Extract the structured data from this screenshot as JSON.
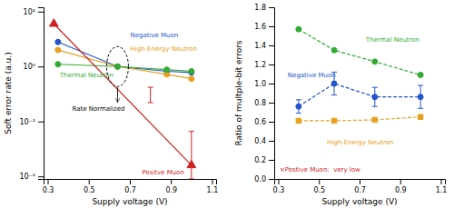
{
  "chart_data": [
    {
      "type": "line",
      "x_label": "Supply voltage (V)",
      "y_label": "Soft error rate (a.u.)",
      "log": "y",
      "grid": false,
      "xlim": [
        0.28,
        1.12
      ],
      "ylim": [
        0.009,
        12
      ],
      "xticks": [
        0.3,
        0.5,
        0.7,
        0.9,
        1.1
      ],
      "yticks": [
        {
          "value": 0.01,
          "label": "10⁻²"
        },
        {
          "value": 0.1,
          "label": "10⁻¹"
        },
        {
          "value": 1,
          "label": "10⁰"
        },
        {
          "value": 10,
          "label": "10¹"
        }
      ],
      "series": [
        {
          "name": "Negative Muon",
          "color": "#2255cc",
          "marker": "circle",
          "line_style": "solid",
          "x": [
            0.35,
            0.64,
            0.88,
            1.0
          ],
          "values": [
            2.8,
            1.0,
            0.82,
            0.78
          ]
        },
        {
          "name": "High-Energy Neutron",
          "color": "#e8a020",
          "marker": "circle",
          "line_style": "solid",
          "x": [
            0.35,
            0.64,
            0.88,
            1.0
          ],
          "values": [
            2.0,
            1.0,
            0.72,
            0.6
          ]
        },
        {
          "name": "Thermal Neutron",
          "color": "#33aa33",
          "marker": "circle",
          "line_style": "solid",
          "x": [
            0.35,
            0.64,
            0.88,
            1.0
          ],
          "values": [
            1.1,
            1.0,
            0.88,
            0.82
          ]
        },
        {
          "name": "Positve Muon",
          "color": "#cc2222",
          "marker": "triangle",
          "line_style": "solid",
          "x": [
            0.33,
            1.0
          ],
          "values": [
            6.0,
            0.016
          ],
          "error_low": [
            null,
            0.007
          ],
          "error_high": [
            null,
            0.05
          ]
        }
      ],
      "error_bars": [
        {
          "x": 0.8,
          "value": 0.3,
          "error_low": 0.08,
          "error_high": 0.12,
          "color": "#cc2222"
        }
      ],
      "annotations": [
        {
          "text": "Rate Normalized",
          "x": 0.64,
          "y": 1.0
        }
      ]
    },
    {
      "type": "line",
      "x_label": "Supply voltage (V)",
      "y_label": "Ratio of multple-bit errors",
      "grid": false,
      "xlim": [
        0.28,
        1.12
      ],
      "ylim": [
        0.0,
        1.8
      ],
      "xticks": [
        0.3,
        0.5,
        0.7,
        0.9,
        1.1
      ],
      "yticks": [
        {
          "value": 0.0,
          "label": "0.0"
        },
        0.2,
        0.4,
        0.6,
        0.8,
        {
          "value": 1.0,
          "label": "1.0"
        },
        1.2,
        1.4,
        1.6,
        1.8
      ],
      "series": [
        {
          "name": "Thermal Neutron",
          "color": "#33aa33",
          "marker": "circle",
          "line_style": "dashed",
          "x": [
            0.4,
            0.575,
            0.775,
            1.0
          ],
          "values": [
            1.57,
            1.35,
            1.23,
            1.09
          ]
        },
        {
          "name": "Negative Muon",
          "color": "#2255cc",
          "marker": "circle",
          "line_style": "dashed",
          "x": [
            0.4,
            0.575,
            0.775,
            1.0
          ],
          "values": [
            0.76,
            1.0,
            0.86,
            0.86
          ],
          "error": [
            0.07,
            0.12,
            0.1,
            0.12
          ]
        },
        {
          "name": "High-Energy Neutron",
          "color": "#e8a020",
          "marker": "square",
          "line_style": "dashed",
          "x": [
            0.4,
            0.575,
            0.775,
            1.0
          ],
          "values": [
            0.61,
            0.61,
            0.62,
            0.65
          ]
        }
      ],
      "annotations": [
        {
          "text": "×Postive Muon:  very low",
          "color": "#cc2222"
        }
      ]
    }
  ]
}
